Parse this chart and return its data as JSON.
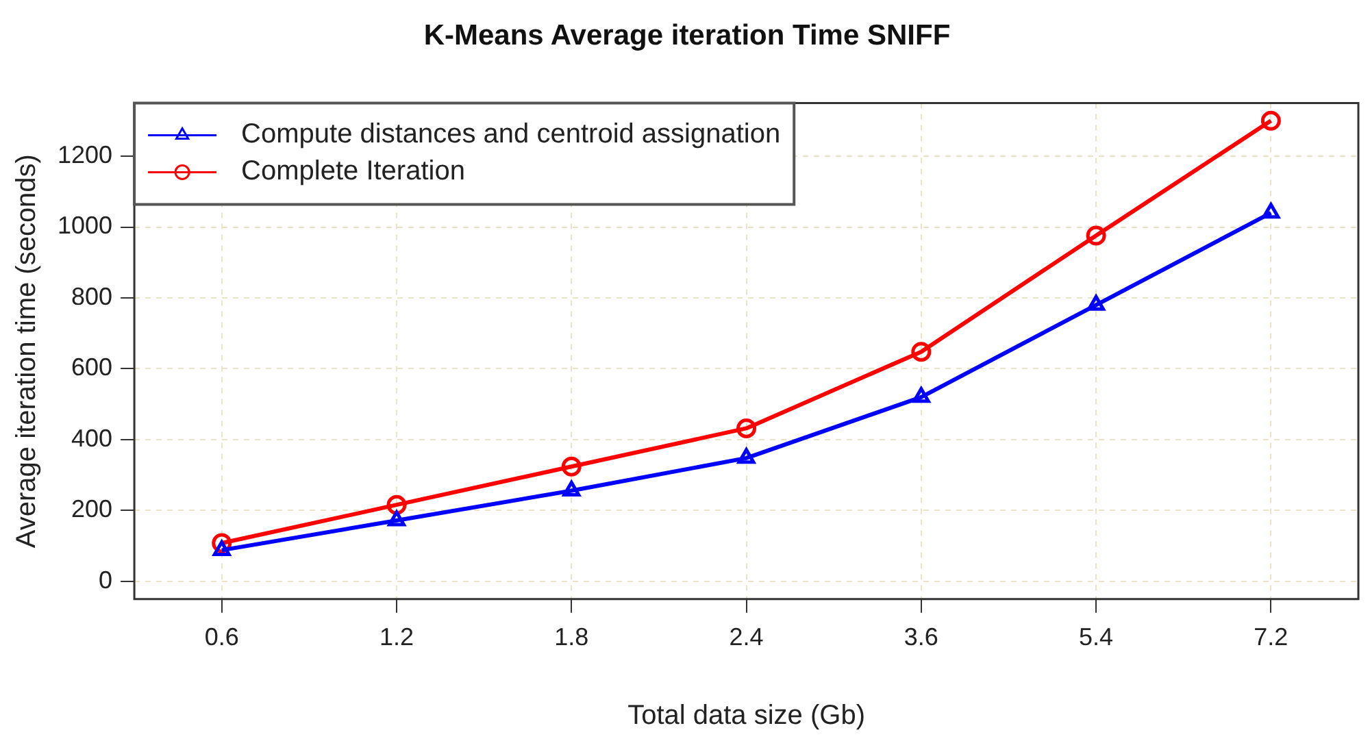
{
  "chart_data": {
    "type": "line",
    "title": "K-Means Average iteration Time SNIFF",
    "xlabel": "Total data size (Gb)",
    "ylabel": "Average iteration time (seconds)",
    "categories": [
      "0.6",
      "1.2",
      "1.8",
      "2.4",
      "3.6",
      "5.4",
      "7.2"
    ],
    "series": [
      {
        "name": "Compute distances and centroid assignation",
        "color": "#0000ff",
        "marker": "triangle",
        "values": [
          88,
          172,
          256,
          348,
          520,
          780,
          1040
        ]
      },
      {
        "name": "Complete Iteration",
        "color": "#ff0000",
        "marker": "circle",
        "values": [
          108,
          216,
          324,
          432,
          648,
          976,
          1300
        ]
      }
    ],
    "ylim": [
      -50,
      1350
    ],
    "yticks": [
      0,
      200,
      400,
      600,
      800,
      1000,
      1200
    ],
    "grid": true,
    "legend": "top left",
    "line_style": "solid"
  }
}
